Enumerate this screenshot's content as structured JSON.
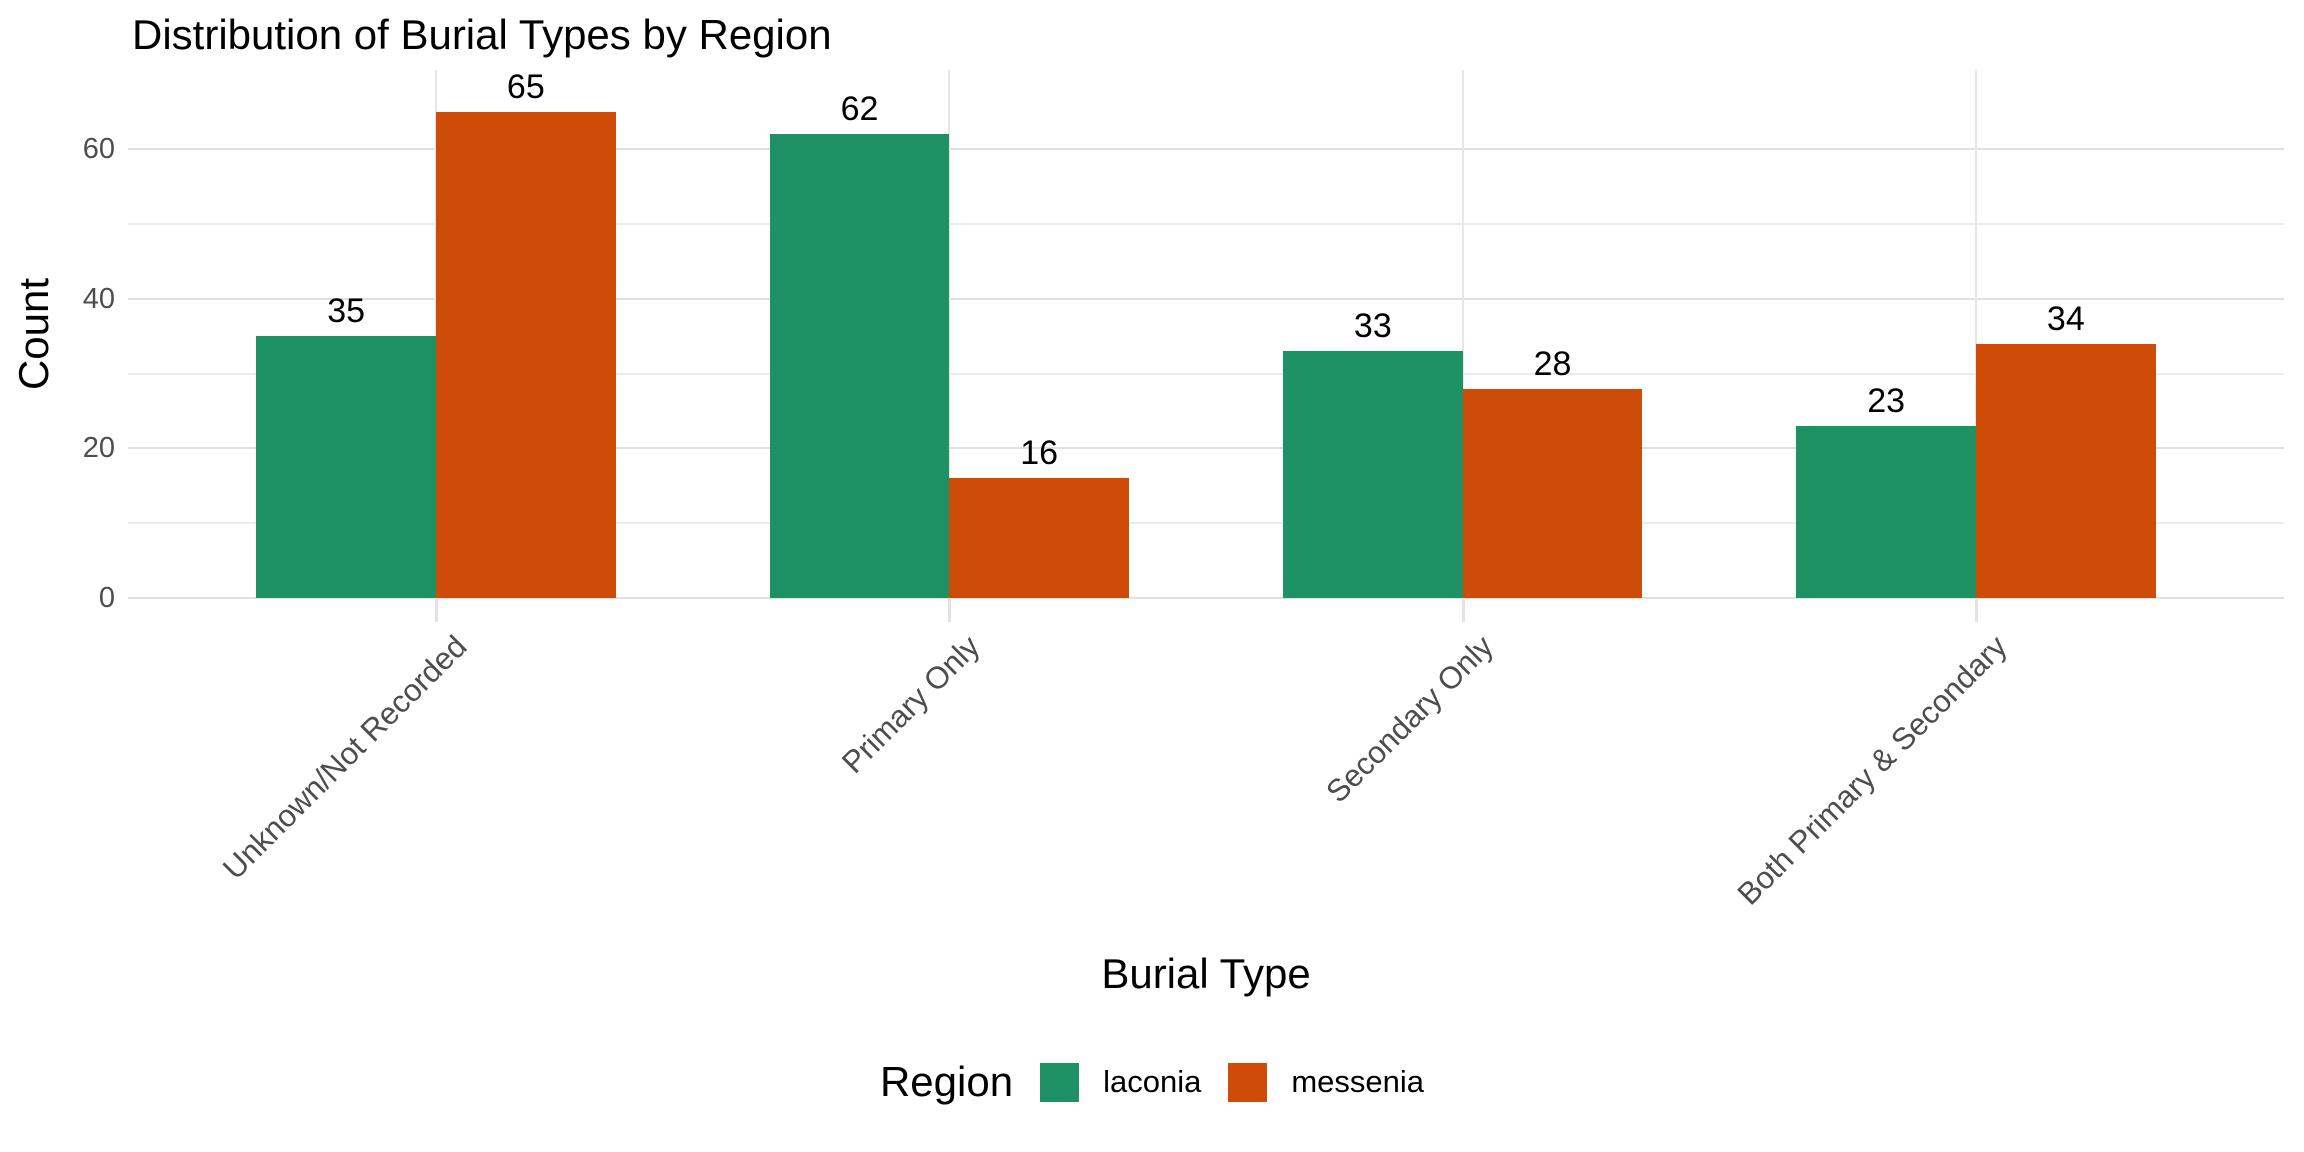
{
  "chart_data": {
    "type": "bar",
    "title": "Distribution of Burial Types by Region",
    "xlabel": "Burial Type",
    "ylabel": "Count",
    "legend_title": "Region",
    "legend_position": "bottom",
    "categories": [
      "Unknown/Not Recorded",
      "Primary Only",
      "Secondary Only",
      "Both Primary & Secondary"
    ],
    "series": [
      {
        "name": "laconia",
        "color": "#1E9265",
        "values": [
          35,
          62,
          33,
          23
        ]
      },
      {
        "name": "messenia",
        "color": "#CE4C08",
        "values": [
          65,
          16,
          28,
          34
        ]
      }
    ],
    "bar_value_labels": [
      [
        35,
        62,
        33,
        23
      ],
      [
        65,
        16,
        28,
        34
      ]
    ],
    "y_major_ticks": [
      0,
      20,
      40,
      60
    ],
    "y_minor_ticks": [
      10,
      30,
      50
    ],
    "ylim": [
      0,
      70.6
    ],
    "grid": "on",
    "styles": {
      "major_grid_color": "#e0e0e0",
      "minor_grid_color": "#ebebeb",
      "vertical_grid_color": "#e7e7e7",
      "tick_label_color": "#4d4d4d",
      "text_color": "#000000",
      "background": "#ffffff"
    }
  }
}
